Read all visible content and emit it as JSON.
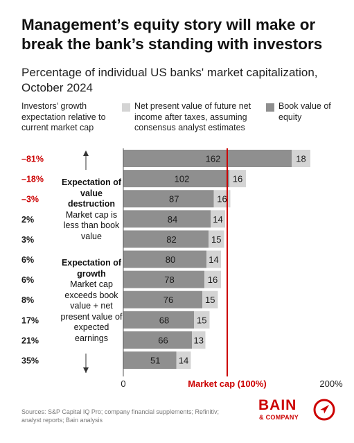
{
  "title": "Management’s equity story will make or break the bank’s standing with investors",
  "subtitle": "Percentage of individual US banks' market capitalization, October 2024",
  "column_header": "Investors’ growth expectation relative to current market cap",
  "legend": {
    "npv": "Net present value of future net income after taxes, assuming consensus analyst estimates",
    "book": "Book value of equity"
  },
  "annotations": {
    "destruction_title": "Expectation of value destruction",
    "destruction_body": "Market cap is less than book value",
    "growth_title": "Expectation of growth",
    "growth_body": "Market cap exceeds book value + net present value of expected earnings"
  },
  "axis": {
    "zero": "0",
    "marker": "Market cap (100%)",
    "max": "200%"
  },
  "footer": "Sources: S&P Capital IQ Pro; company financial supplements; Refinitiv; analyst reports; Bain analysis",
  "logo": {
    "word": "BAIN",
    "sub": "& COMPANY"
  },
  "colors": {
    "book": "#8f8f8f",
    "npv": "#d4d4d4",
    "accent": "#cc0000",
    "text": "#1a1a1a"
  },
  "chart_data": {
    "type": "bar",
    "orientation": "horizontal",
    "stacked": true,
    "categories": [
      "–81%",
      "–18%",
      "–3%",
      "2%",
      "3%",
      "6%",
      "6%",
      "8%",
      "17%",
      "21%",
      "35%"
    ],
    "series": [
      {
        "name": "Book value of equity",
        "values": [
          162,
          102,
          87,
          84,
          82,
          80,
          78,
          76,
          68,
          66,
          51
        ]
      },
      {
        "name": "Net present value of future net income after taxes, assuming consensus analyst estimates",
        "values": [
          18,
          16,
          16,
          14,
          15,
          14,
          16,
          15,
          15,
          13,
          14
        ]
      }
    ],
    "red_categories": [
      "–81%",
      "–18%",
      "–3%"
    ],
    "xlim": [
      0,
      200
    ],
    "reference_line": 100,
    "grid": false,
    "legend_position": "top"
  }
}
